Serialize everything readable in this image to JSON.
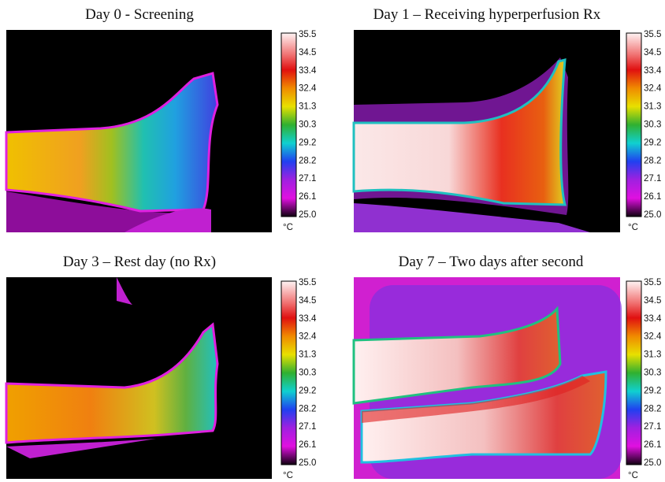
{
  "panels": [
    {
      "title": "Day 0 - Screening"
    },
    {
      "title": "Day 1 – Receiving hyperperfusion Rx"
    },
    {
      "title": "Day 3 – Rest day (no Rx)"
    },
    {
      "title": "Day 7 – Two days after second"
    }
  ],
  "colorbar": {
    "ticks": [
      "35.5",
      "34.5",
      "33.4",
      "32.4",
      "31.3",
      "30.3",
      "29.2",
      "28.2",
      "27.1",
      "26.1",
      "25.0"
    ],
    "unit": "°C"
  }
}
